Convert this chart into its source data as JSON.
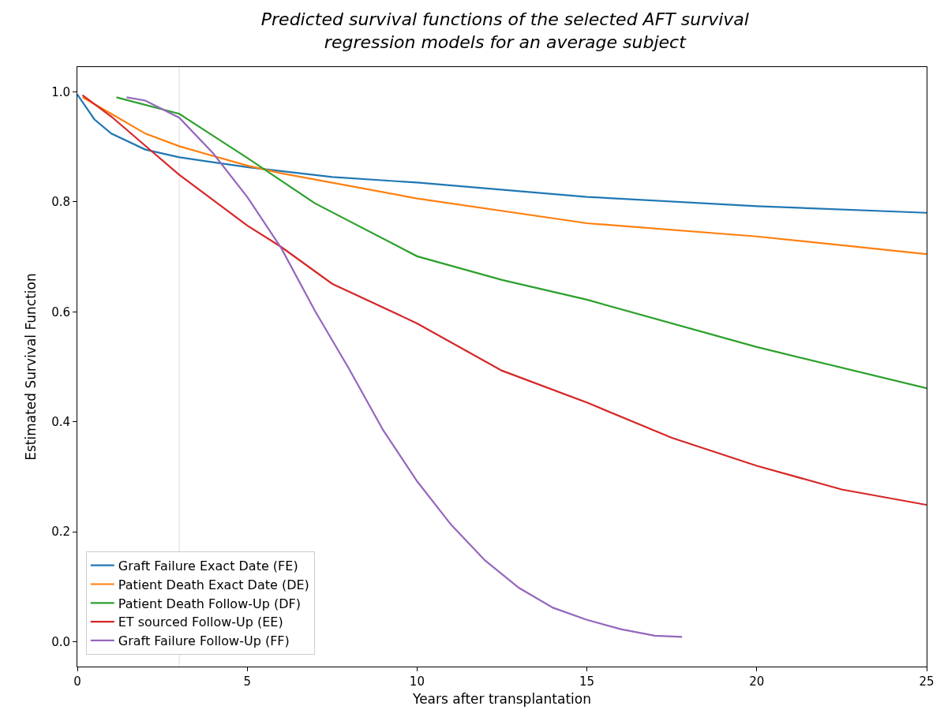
{
  "chart_data": {
    "type": "line",
    "title": "Predicted survival functions of the selected AFT survival\nregression models for an average subject",
    "xlabel": "Years after transplantation",
    "ylabel": "Estimated Survival Function",
    "xlim": [
      0,
      25
    ],
    "xticks": [
      0,
      5,
      10,
      15,
      20,
      25
    ],
    "ylim": [
      -0.045,
      1.045
    ],
    "yticks": [
      {
        "value": 0,
        "label": "0.0"
      },
      {
        "value": 0.2,
        "label": "0.2"
      },
      {
        "value": 0.4,
        "label": "0.4"
      },
      {
        "value": 0.6,
        "label": "0.6"
      },
      {
        "value": 0.8,
        "label": "0.8"
      },
      {
        "value": 1,
        "label": "1.0"
      }
    ],
    "grid": false,
    "legend": "bottom left",
    "marker": "none",
    "line_style": "solid",
    "ref_lines": [
      {
        "axis": "x",
        "value": 3,
        "label": null,
        "color": "#e8e8e8"
      }
    ],
    "series": [
      {
        "name": "Graft Failure Exact Date (FE)",
        "color": "#1f77b4",
        "x": [
          0,
          0.5,
          1,
          2,
          3,
          5,
          7.5,
          10,
          15,
          20,
          25
        ],
        "values": [
          0.995,
          0.95,
          0.924,
          0.895,
          0.881,
          0.863,
          0.845,
          0.835,
          0.809,
          0.792,
          0.78
        ]
      },
      {
        "name": "Patient Death Exact Date (DE)",
        "color": "#ff7f0e",
        "x": [
          0.15,
          1,
          2,
          3,
          5,
          6,
          10,
          15,
          20,
          25
        ],
        "values": [
          0.99,
          0.96,
          0.924,
          0.901,
          0.866,
          0.852,
          0.806,
          0.761,
          0.737,
          0.705
        ]
      },
      {
        "name": "Patient Death Follow-Up (DF)",
        "color": "#2ca02c",
        "x": [
          1.15,
          3,
          5,
          7,
          10,
          12.5,
          15,
          20,
          25
        ],
        "values": [
          0.99,
          0.96,
          0.88,
          0.797,
          0.701,
          0.658,
          0.622,
          0.536,
          0.461
        ]
      },
      {
        "name": "ET sourced Follow-Up (EE)",
        "color": "#d62728",
        "x": [
          0.15,
          1,
          2,
          3,
          5,
          6,
          7.5,
          10,
          12.5,
          15,
          17.5,
          20,
          22.5,
          25
        ],
        "values": [
          0.994,
          0.955,
          0.902,
          0.849,
          0.757,
          0.718,
          0.651,
          0.579,
          0.493,
          0.435,
          0.371,
          0.32,
          0.277,
          0.249
        ]
      },
      {
        "name": "Graft Failure Follow-Up (FF)",
        "color": "#9467bd",
        "x": [
          1.45,
          2,
          3,
          4,
          5,
          6,
          7,
          8,
          9,
          10,
          11,
          12,
          13,
          14,
          15,
          16,
          17,
          17.8
        ],
        "values": [
          0.99,
          0.984,
          0.953,
          0.888,
          0.809,
          0.716,
          0.601,
          0.496,
          0.385,
          0.292,
          0.213,
          0.148,
          0.098,
          0.062,
          0.04,
          0.023,
          0.011,
          0.009
        ]
      }
    ]
  }
}
